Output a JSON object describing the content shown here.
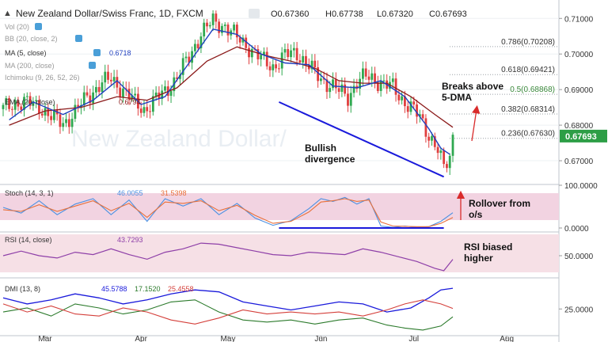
{
  "header": {
    "symbol": "New Zealand Dollar/Swiss Franc, 1D, FXCM",
    "ohlc": {
      "o": "O0.67360",
      "h": "H0.67738",
      "l": "L0.67320",
      "c": "C0.67693"
    },
    "last_price": "0.67693"
  },
  "colors": {
    "up": "#2fa84f",
    "down": "#e03e3e",
    "ma5": "#1f3fbf",
    "ema": "#8b1a1a",
    "trendline": "#1a1adb",
    "stoch_k": "#4a90e2",
    "stoch_d": "#e8703a",
    "rsi": "#8e3fa8",
    "dmi_plus": "#2b7a2b",
    "dmi_minus": "#d43f3a",
    "adx": "#1a1adb",
    "band_fill": "#f2d3e1",
    "rsi_fill": "#f6e0e6",
    "badge": "#2d9e46",
    "arrow": "#d92b2b"
  },
  "legends": {
    "vol": "Vol (20)",
    "bb": "BB (20, close, 2)",
    "ma5": "MA (5, close)",
    "ma5_value": "0.6718",
    "ma200": "MA (200, close)",
    "ichimoku": "Ichimoku (9, 26, 52, 26)",
    "ema": "EMA (20, close)",
    "ema_value": "0.6794",
    "stoch": "Stoch (14, 3, 1)",
    "stoch_k": "46.0055",
    "stoch_d": "31.5398",
    "rsi": "RSI (14, close)",
    "rsi_value": "43.7293",
    "dmi": "DMI (13, 8)",
    "dmi_adx": "45.5788",
    "dmi_plus": "17.1520",
    "dmi_minus": "25.4558"
  },
  "annotations": {
    "breaks": [
      "Breaks above",
      "5-DMA"
    ],
    "bullish": [
      "Bullish",
      "divergence"
    ],
    "rollover": [
      "Rollover from",
      "o/s"
    ],
    "rsi_note": [
      "RSI biased",
      "higher"
    ]
  },
  "chart_data": {
    "type": "candlestick",
    "x_tick_labels": [
      "Mar",
      "Apr",
      "May",
      "Jun",
      "Jul",
      "Aug"
    ],
    "price_axis": {
      "ticks": [
        "0.71000",
        "0.70000",
        "0.69000",
        "0.68000",
        "0.67000"
      ],
      "ylim": [
        0.664,
        0.7134
      ]
    },
    "fibonacci_levels": [
      {
        "label": "0.786(0.70208)",
        "value": 0.70208
      },
      {
        "label": "0.618(0.69421)",
        "value": 0.69421
      },
      {
        "label": "0.5(0.68868)",
        "value": 0.68868
      },
      {
        "label": "0.382(0.68314)",
        "value": 0.68314
      },
      {
        "label": "0.236(0.67630)",
        "value": 0.6763
      }
    ],
    "price_path": [
      [
        0,
        0.6845
      ],
      [
        4,
        0.6865
      ],
      [
        8,
        0.6862
      ],
      [
        12,
        0.6855
      ],
      [
        16,
        0.6822
      ],
      [
        20,
        0.6806
      ],
      [
        24,
        0.6836
      ],
      [
        28,
        0.688
      ],
      [
        32,
        0.6912
      ],
      [
        36,
        0.693
      ],
      [
        40,
        0.69
      ],
      [
        44,
        0.6862
      ],
      [
        47,
        0.6845
      ],
      [
        50,
        0.6865
      ],
      [
        54,
        0.6895
      ],
      [
        58,
        0.6935
      ],
      [
        62,
        0.699
      ],
      [
        66,
        0.706
      ],
      [
        70,
        0.709
      ],
      [
        74,
        0.708
      ],
      [
        78,
        0.7045
      ],
      [
        82,
        0.702
      ],
      [
        86,
        0.6985
      ],
      [
        90,
        0.6965
      ],
      [
        94,
        0.6995
      ],
      [
        98,
        0.7005
      ],
      [
        100,
        0.6985
      ],
      [
        103,
        0.6955
      ],
      [
        106,
        0.693
      ],
      [
        109,
        0.6915
      ],
      [
        112,
        0.6895
      ],
      [
        115,
        0.688
      ],
      [
        118,
        0.6922
      ],
      [
        121,
        0.6935
      ],
      [
        124,
        0.693
      ],
      [
        127,
        0.6915
      ],
      [
        130,
        0.6905
      ],
      [
        133,
        0.6875
      ],
      [
        136,
        0.685
      ],
      [
        139,
        0.682
      ],
      [
        142,
        0.6775
      ],
      [
        145,
        0.673
      ],
      [
        147,
        0.6675
      ],
      [
        149,
        0.6712
      ],
      [
        150,
        0.677
      ]
    ],
    "ma5_path": [
      [
        2,
        0.6815
      ],
      [
        10,
        0.6865
      ],
      [
        20,
        0.683
      ],
      [
        30,
        0.687
      ],
      [
        38,
        0.6925
      ],
      [
        46,
        0.6858
      ],
      [
        54,
        0.688
      ],
      [
        62,
        0.6975
      ],
      [
        70,
        0.707
      ],
      [
        78,
        0.7055
      ],
      [
        86,
        0.7
      ],
      [
        94,
        0.6975
      ],
      [
        102,
        0.697
      ],
      [
        110,
        0.691
      ],
      [
        118,
        0.6905
      ],
      [
        126,
        0.6925
      ],
      [
        134,
        0.688
      ],
      [
        142,
        0.679
      ],
      [
        146,
        0.6735
      ],
      [
        149,
        0.6718
      ]
    ],
    "ema20_path": [
      [
        2,
        0.68
      ],
      [
        14,
        0.684
      ],
      [
        26,
        0.685
      ],
      [
        38,
        0.688
      ],
      [
        48,
        0.687
      ],
      [
        58,
        0.6905
      ],
      [
        68,
        0.698
      ],
      [
        78,
        0.702
      ],
      [
        88,
        0.6995
      ],
      [
        96,
        0.698
      ],
      [
        104,
        0.696
      ],
      [
        112,
        0.6925
      ],
      [
        120,
        0.6918
      ],
      [
        128,
        0.6918
      ],
      [
        136,
        0.688
      ],
      [
        144,
        0.683
      ],
      [
        150,
        0.6794
      ]
    ],
    "trendline": [
      [
        92,
        0.6865
      ],
      [
        147,
        0.6655
      ]
    ],
    "stoch": {
      "ticks": [
        "100.0000",
        "0.0000"
      ],
      "ylim": [
        0,
        100
      ],
      "k": [
        [
          0,
          62
        ],
        [
          6,
          45
        ],
        [
          12,
          82
        ],
        [
          18,
          40
        ],
        [
          24,
          72
        ],
        [
          30,
          88
        ],
        [
          36,
          40
        ],
        [
          42,
          84
        ],
        [
          48,
          20
        ],
        [
          54,
          88
        ],
        [
          60,
          66
        ],
        [
          66,
          88
        ],
        [
          72,
          40
        ],
        [
          78,
          74
        ],
        [
          84,
          30
        ],
        [
          90,
          8
        ],
        [
          96,
          22
        ],
        [
          102,
          58
        ],
        [
          106,
          88
        ],
        [
          110,
          80
        ],
        [
          114,
          92
        ],
        [
          118,
          72
        ],
        [
          122,
          88
        ],
        [
          126,
          6
        ],
        [
          130,
          2
        ],
        [
          134,
          6
        ],
        [
          138,
          2
        ],
        [
          142,
          4
        ],
        [
          146,
          20
        ],
        [
          150,
          46
        ]
      ],
      "d": [
        [
          0,
          55
        ],
        [
          6,
          50
        ],
        [
          12,
          70
        ],
        [
          18,
          50
        ],
        [
          24,
          66
        ],
        [
          30,
          82
        ],
        [
          36,
          52
        ],
        [
          42,
          74
        ],
        [
          48,
          32
        ],
        [
          54,
          78
        ],
        [
          60,
          74
        ],
        [
          66,
          82
        ],
        [
          72,
          52
        ],
        [
          78,
          68
        ],
        [
          84,
          38
        ],
        [
          90,
          14
        ],
        [
          96,
          20
        ],
        [
          102,
          48
        ],
        [
          106,
          78
        ],
        [
          110,
          82
        ],
        [
          114,
          88
        ],
        [
          118,
          80
        ],
        [
          122,
          84
        ],
        [
          126,
          18
        ],
        [
          130,
          6
        ],
        [
          134,
          5
        ],
        [
          138,
          4
        ],
        [
          142,
          4
        ],
        [
          146,
          14
        ],
        [
          150,
          31.5
        ]
      ],
      "divergence_line": [
        [
          92,
          0
        ],
        [
          147,
          0
        ]
      ]
    },
    "rsi": {
      "ticks": [
        "50.0000"
      ],
      "ylim": [
        10,
        90
      ],
      "values": [
        [
          0,
          50
        ],
        [
          6,
          58
        ],
        [
          12,
          50
        ],
        [
          18,
          46
        ],
        [
          24,
          56
        ],
        [
          30,
          52
        ],
        [
          36,
          62
        ],
        [
          42,
          52
        ],
        [
          48,
          44
        ],
        [
          54,
          56
        ],
        [
          60,
          62
        ],
        [
          66,
          72
        ],
        [
          72,
          70
        ],
        [
          78,
          64
        ],
        [
          84,
          58
        ],
        [
          90,
          52
        ],
        [
          96,
          50
        ],
        [
          102,
          56
        ],
        [
          108,
          54
        ],
        [
          114,
          52
        ],
        [
          120,
          62
        ],
        [
          126,
          56
        ],
        [
          132,
          48
        ],
        [
          138,
          40
        ],
        [
          144,
          28
        ],
        [
          147,
          24
        ],
        [
          150,
          43.7
        ]
      ]
    },
    "dmi": {
      "ticks": [
        "25.0000"
      ],
      "ylim": [
        0,
        52
      ],
      "adx": [
        [
          0,
          36
        ],
        [
          8,
          30
        ],
        [
          16,
          34
        ],
        [
          24,
          40
        ],
        [
          32,
          36
        ],
        [
          40,
          30
        ],
        [
          48,
          34
        ],
        [
          56,
          40
        ],
        [
          64,
          44
        ],
        [
          72,
          42
        ],
        [
          80,
          32
        ],
        [
          88,
          28
        ],
        [
          96,
          24
        ],
        [
          104,
          28
        ],
        [
          112,
          32
        ],
        [
          120,
          30
        ],
        [
          128,
          22
        ],
        [
          136,
          26
        ],
        [
          142,
          36
        ],
        [
          146,
          44
        ],
        [
          150,
          45.6
        ]
      ],
      "plus_di": [
        [
          0,
          22
        ],
        [
          8,
          26
        ],
        [
          16,
          18
        ],
        [
          24,
          30
        ],
        [
          32,
          26
        ],
        [
          40,
          20
        ],
        [
          48,
          24
        ],
        [
          56,
          32
        ],
        [
          64,
          34
        ],
        [
          72,
          22
        ],
        [
          80,
          14
        ],
        [
          88,
          12
        ],
        [
          96,
          14
        ],
        [
          104,
          10
        ],
        [
          112,
          14
        ],
        [
          120,
          16
        ],
        [
          128,
          9
        ],
        [
          134,
          6
        ],
        [
          140,
          4
        ],
        [
          146,
          8
        ],
        [
          150,
          17.2
        ]
      ],
      "minus_di": [
        [
          0,
          30
        ],
        [
          8,
          22
        ],
        [
          16,
          28
        ],
        [
          24,
          20
        ],
        [
          32,
          18
        ],
        [
          40,
          26
        ],
        [
          48,
          22
        ],
        [
          56,
          14
        ],
        [
          64,
          10
        ],
        [
          72,
          16
        ],
        [
          80,
          24
        ],
        [
          88,
          20
        ],
        [
          96,
          22
        ],
        [
          104,
          20
        ],
        [
          112,
          22
        ],
        [
          120,
          18
        ],
        [
          128,
          24
        ],
        [
          134,
          30
        ],
        [
          140,
          34
        ],
        [
          146,
          30
        ],
        [
          150,
          25.5
        ]
      ]
    }
  }
}
